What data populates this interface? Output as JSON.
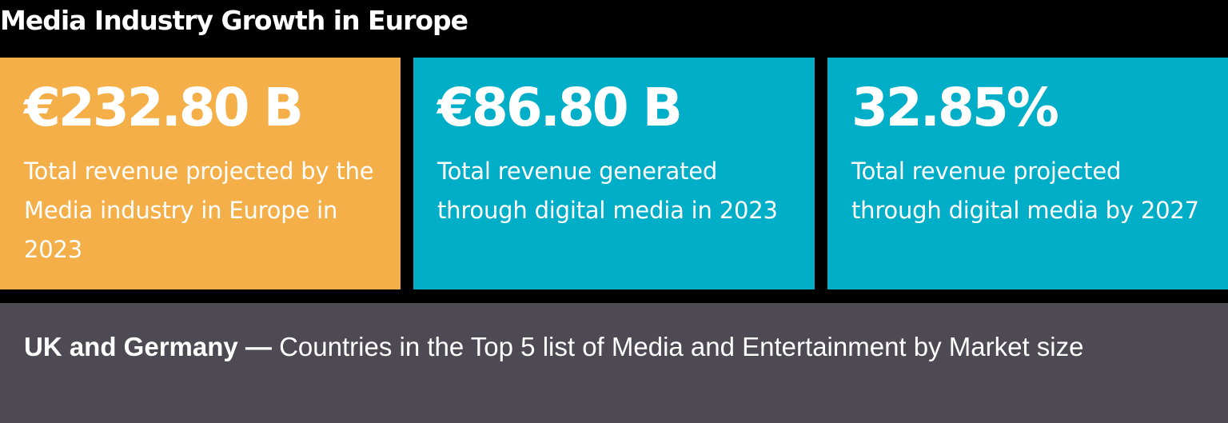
{
  "title": "Media Industry Growth in Europe",
  "colors": {
    "background": "#000000",
    "card_orange": "#F5AF48",
    "card_teal": "#00AEC7",
    "footer_gray": "#4D4A53",
    "text": "#FFFFFF"
  },
  "stats": [
    {
      "value": "€232.80 B",
      "description": "Total revenue projected by the Media industry in Europe in 2023",
      "color": "#F5AF48"
    },
    {
      "value": "€86.80 B",
      "description": "Total revenue generated through digital media in 2023",
      "color": "#00AEC7"
    },
    {
      "value": "32.85%",
      "description": "Total revenue projected through digital media by 2027",
      "color": "#00AEC7"
    }
  ],
  "footer": {
    "highlight": "UK and Germany —",
    "text": " Countries in the Top 5 list of Media and Entertainment by Market size"
  }
}
